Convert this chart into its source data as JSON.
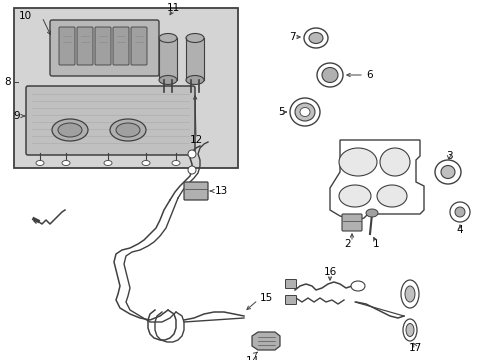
{
  "bg_color": "#ffffff",
  "line_color": "#404040",
  "label_color": "#000000",
  "font_size": 7.5,
  "inset_bg": "#d8d8d8",
  "part_bg": "#c8c8c8",
  "fig_w": 4.89,
  "fig_h": 3.6,
  "dpi": 100
}
